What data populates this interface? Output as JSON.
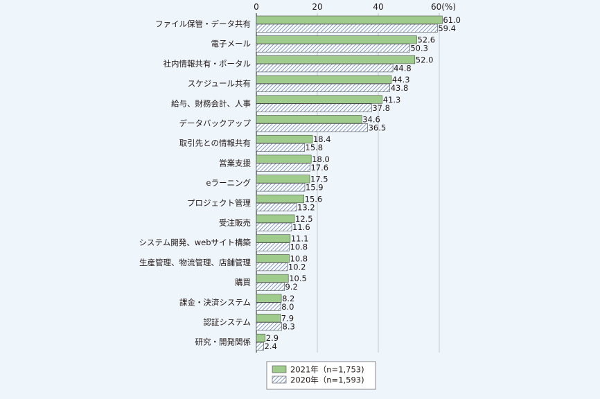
{
  "chart_data": {
    "type": "bar",
    "orientation": "horizontal",
    "x_ticks": [
      "0",
      "20",
      "40",
      "60(%)"
    ],
    "xlim": [
      0,
      60
    ],
    "grid": true,
    "legend_position": "bottom",
    "categories": [
      "ファイル保管・データ共有",
      "電子メール",
      "社内情報共有・ポータル",
      "スケジュール共有",
      "給与、財務会計、人事",
      "データバックアップ",
      "取引先との情報共有",
      "営業支援",
      "eラーニング",
      "プロジェクト管理",
      "受注販売",
      "システム開発、webサイト構築",
      "生産管理、物流管理、店舗管理",
      "購買",
      "課金・決済システム",
      "認証システム",
      "研究・開発関係"
    ],
    "series": [
      {
        "name": "2021年（n=1,753)",
        "color": "#9fcc8c",
        "pattern": "solid",
        "values": [
          61.0,
          52.6,
          52.0,
          44.3,
          41.3,
          34.6,
          18.4,
          18.0,
          17.5,
          15.6,
          12.5,
          11.1,
          10.8,
          10.5,
          8.2,
          7.9,
          2.9
        ],
        "labels": [
          "61.0",
          "52.6",
          "52.0",
          "44.3",
          "41.3",
          "34.6",
          "18.4",
          "18.0",
          "17.5",
          "15.6",
          "12.5",
          "11.1",
          "10.8",
          "10.5",
          "8.2",
          "7.9",
          "2.9"
        ]
      },
      {
        "name": "2020年（n=1,593)",
        "color": "#a9c3e6",
        "pattern": "hatched",
        "values": [
          59.4,
          50.3,
          44.8,
          43.8,
          37.8,
          36.5,
          15.8,
          17.6,
          15.9,
          13.2,
          11.6,
          10.8,
          10.2,
          9.2,
          8.0,
          8.3,
          2.4
        ],
        "labels": [
          "59.4",
          "50.3",
          "44.8",
          "43.8",
          "37.8",
          "36.5",
          "15.8",
          "17.6",
          "15.9",
          "13.2",
          "11.6",
          "10.8",
          "10.2",
          "9.2",
          "8.0",
          "8.3",
          "2.4"
        ]
      }
    ]
  }
}
